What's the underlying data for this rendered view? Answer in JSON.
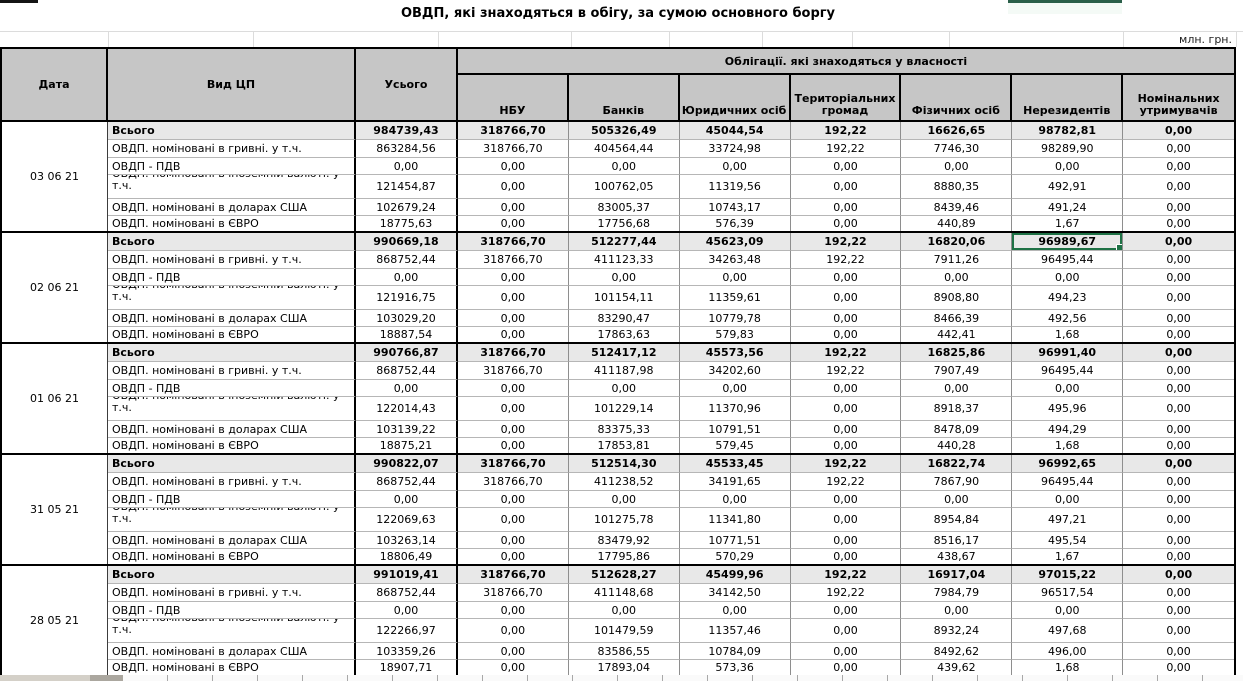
{
  "title": "ОВДП, які знаходяться в обігу, за сумою основного боргу",
  "unit_label": "млн. грн.",
  "colors": {
    "header_bg": "#C6C6C6",
    "total_row_bg": "#E8E8E8",
    "selection_green": "#1E7145",
    "sheet_strip": "#D4D0C8"
  },
  "table": {
    "col_headers": {
      "date": "Дата",
      "type": "Вид ЦП",
      "total": "Усього",
      "group": "Облігації. які знаходяться у власності",
      "owners": [
        "НБУ",
        "Банків",
        "Юридичних осіб",
        "Територіальних громад",
        "Фізичних осіб",
        "Нерезидентів",
        "Номінальних утримувачів"
      ]
    },
    "row_labels": [
      "Всього",
      "ОВДП. номіновані в гривні. у т.ч.",
      "ОВДП - ПДВ",
      "ОВДП. номіновані в іноземній валюті. у т.ч.",
      "ОВДП. номіновані в доларах США",
      "ОВДП. номіновані в ЄВРО"
    ],
    "blocks": [
      {
        "date": "03 06 21",
        "rows": [
          [
            "984739,43",
            "318766,70",
            "505326,49",
            "45044,54",
            "192,22",
            "16626,65",
            "98782,81",
            "0,00"
          ],
          [
            "863284,56",
            "318766,70",
            "404564,44",
            "33724,98",
            "192,22",
            "7746,30",
            "98289,90",
            "0,00"
          ],
          [
            "0,00",
            "0,00",
            "0,00",
            "0,00",
            "0,00",
            "0,00",
            "0,00",
            "0,00"
          ],
          [
            "121454,87",
            "0,00",
            "100762,05",
            "11319,56",
            "0,00",
            "8880,35",
            "492,91",
            "0,00"
          ],
          [
            "102679,24",
            "0,00",
            "83005,37",
            "10743,17",
            "0,00",
            "8439,46",
            "491,24",
            "0,00"
          ],
          [
            "18775,63",
            "0,00",
            "17756,68",
            "576,39",
            "0,00",
            "440,89",
            "1,67",
            "0,00"
          ]
        ]
      },
      {
        "date": "02 06 21",
        "rows": [
          [
            "990669,18",
            "318766,70",
            "512277,44",
            "45623,09",
            "192,22",
            "16820,06",
            "96989,67",
            "0,00"
          ],
          [
            "868752,44",
            "318766,70",
            "411123,33",
            "34263,48",
            "192,22",
            "7911,26",
            "96495,44",
            "0,00"
          ],
          [
            "0,00",
            "0,00",
            "0,00",
            "0,00",
            "0,00",
            "0,00",
            "0,00",
            "0,00"
          ],
          [
            "121916,75",
            "0,00",
            "101154,11",
            "11359,61",
            "0,00",
            "8908,80",
            "494,23",
            "0,00"
          ],
          [
            "103029,20",
            "0,00",
            "83290,47",
            "10779,78",
            "0,00",
            "8466,39",
            "492,56",
            "0,00"
          ],
          [
            "18887,54",
            "0,00",
            "17863,63",
            "579,83",
            "0,00",
            "442,41",
            "1,68",
            "0,00"
          ]
        ]
      },
      {
        "date": "01 06 21",
        "rows": [
          [
            "990766,87",
            "318766,70",
            "512417,12",
            "45573,56",
            "192,22",
            "16825,86",
            "96991,40",
            "0,00"
          ],
          [
            "868752,44",
            "318766,70",
            "411187,98",
            "34202,60",
            "192,22",
            "7907,49",
            "96495,44",
            "0,00"
          ],
          [
            "0,00",
            "0,00",
            "0,00",
            "0,00",
            "0,00",
            "0,00",
            "0,00",
            "0,00"
          ],
          [
            "122014,43",
            "0,00",
            "101229,14",
            "11370,96",
            "0,00",
            "8918,37",
            "495,96",
            "0,00"
          ],
          [
            "103139,22",
            "0,00",
            "83375,33",
            "10791,51",
            "0,00",
            "8478,09",
            "494,29",
            "0,00"
          ],
          [
            "18875,21",
            "0,00",
            "17853,81",
            "579,45",
            "0,00",
            "440,28",
            "1,68",
            "0,00"
          ]
        ]
      },
      {
        "date": "31 05 21",
        "rows": [
          [
            "990822,07",
            "318766,70",
            "512514,30",
            "45533,45",
            "192,22",
            "16822,74",
            "96992,65",
            "0,00"
          ],
          [
            "868752,44",
            "318766,70",
            "411238,52",
            "34191,65",
            "192,22",
            "7867,90",
            "96495,44",
            "0,00"
          ],
          [
            "0,00",
            "0,00",
            "0,00",
            "0,00",
            "0,00",
            "0,00",
            "0,00",
            "0,00"
          ],
          [
            "122069,63",
            "0,00",
            "101275,78",
            "11341,80",
            "0,00",
            "8954,84",
            "497,21",
            "0,00"
          ],
          [
            "103263,14",
            "0,00",
            "83479,92",
            "10771,51",
            "0,00",
            "8516,17",
            "495,54",
            "0,00"
          ],
          [
            "18806,49",
            "0,00",
            "17795,86",
            "570,29",
            "0,00",
            "438,67",
            "1,67",
            "0,00"
          ]
        ]
      },
      {
        "date": "28 05 21",
        "rows": [
          [
            "991019,41",
            "318766,70",
            "512628,27",
            "45499,96",
            "192,22",
            "16917,04",
            "97015,22",
            "0,00"
          ],
          [
            "868752,44",
            "318766,70",
            "411148,68",
            "34142,50",
            "192,22",
            "7984,79",
            "96517,54",
            "0,00"
          ],
          [
            "0,00",
            "0,00",
            "0,00",
            "0,00",
            "0,00",
            "0,00",
            "0,00",
            "0,00"
          ],
          [
            "122266,97",
            "0,00",
            "101479,59",
            "11357,46",
            "0,00",
            "8932,24",
            "497,68",
            "0,00"
          ],
          [
            "103359,26",
            "0,00",
            "83586,55",
            "10784,09",
            "0,00",
            "8492,62",
            "496,00",
            "0,00"
          ],
          [
            "18907,71",
            "0,00",
            "17893,04",
            "573,36",
            "0,00",
            "439,62",
            "1,68",
            "0,00"
          ]
        ]
      }
    ]
  },
  "selection": {
    "date": "02 06 21",
    "row": "Всього",
    "column": "Нерезидентів",
    "value": "96989,67",
    "block_index": 1,
    "row_index": 0,
    "value_index": 6
  }
}
